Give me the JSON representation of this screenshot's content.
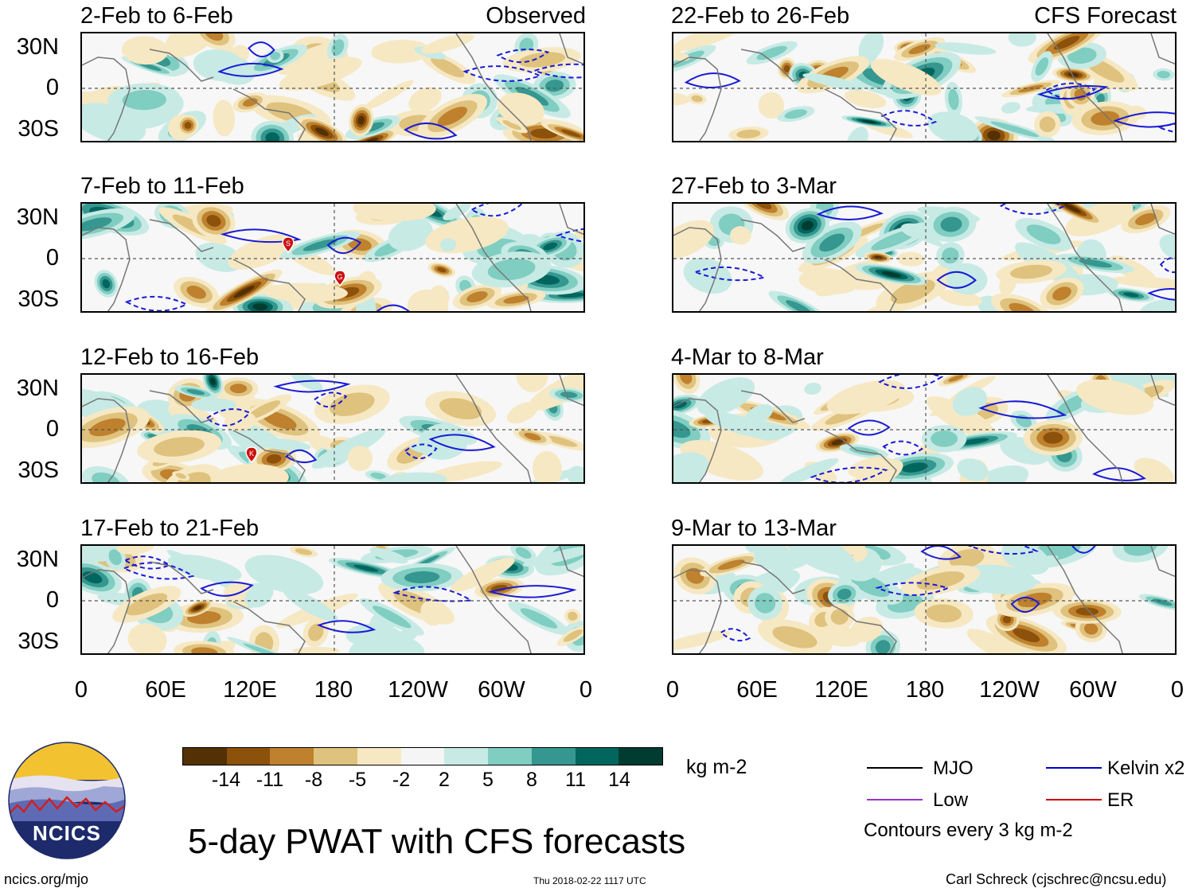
{
  "panels": [
    {
      "title": "2-Feb to 6-Feb",
      "tag": "Observed",
      "seed": 11
    },
    {
      "title": "7-Feb to 11-Feb",
      "tag": "",
      "seed": 23
    },
    {
      "title": "12-Feb to 16-Feb",
      "tag": "",
      "seed": 37
    },
    {
      "title": "17-Feb to 21-Feb",
      "tag": "",
      "seed": 41
    },
    {
      "title": "22-Feb to 26-Feb",
      "tag": "CFS Forecast",
      "seed": 53
    },
    {
      "title": "27-Feb to 3-Mar",
      "tag": "",
      "seed": 67
    },
    {
      "title": "4-Mar to 8-Mar",
      "tag": "",
      "seed": 71
    },
    {
      "title": "9-Mar to 13-Mar",
      "tag": "",
      "seed": 89
    }
  ],
  "lat_labels": [
    "30N",
    "0",
    "30S"
  ],
  "lon_labels": [
    "0",
    "60E",
    "120E",
    "180",
    "120W",
    "60W",
    "0"
  ],
  "storm_markers": [
    {
      "panel": 1,
      "letter": "S"
    },
    {
      "panel": 1,
      "letter": "G"
    },
    {
      "panel": 2,
      "letter": "K"
    }
  ],
  "colorbar": {
    "colors": [
      "#543005",
      "#8c510a",
      "#bf812d",
      "#dfc27d",
      "#f6e8c3",
      "#f5f5f5",
      "#c7eae5",
      "#80cdc1",
      "#35978f",
      "#01665e",
      "#003c30"
    ],
    "labels": [
      "-14",
      "-11",
      "-8",
      "-5",
      "-2",
      "2",
      "5",
      "8",
      "11",
      "14"
    ],
    "units": "kg m-2"
  },
  "legend": {
    "items": [
      {
        "label": "MJO",
        "color": "#000000"
      },
      {
        "label": "Kelvin x2",
        "color": "#0000cc"
      },
      {
        "label": "Low",
        "color": "#9933cc"
      },
      {
        "label": "ER",
        "color": "#cc0000"
      }
    ],
    "note": "Contours every 3 kg m-2"
  },
  "logo": {
    "text": "NCICS"
  },
  "main_title": "5-day PWAT with CFS forecasts",
  "website": "ncics.org/mjo",
  "timestamp": "Thu 2018-02-22 1117 UTC",
  "author": "Carl Schreck (cjschrec@ncsu.edu)"
}
